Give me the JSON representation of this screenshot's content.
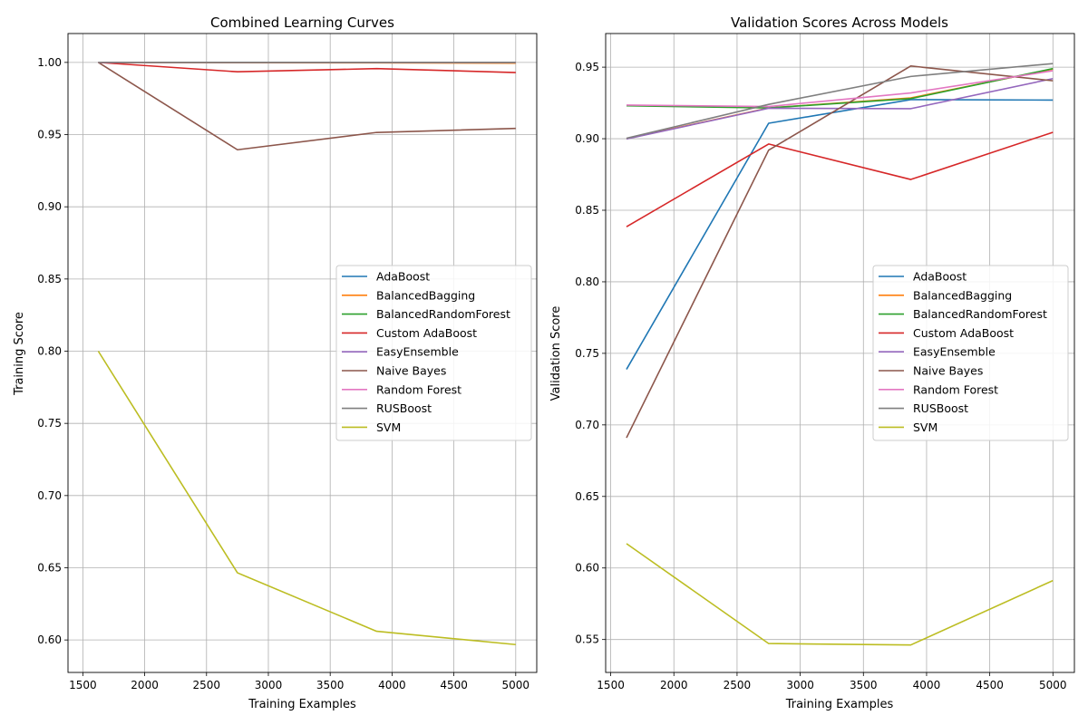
{
  "chart_data": [
    {
      "type": "line",
      "title": "Combined Learning Curves",
      "xlabel": "Training Examples",
      "ylabel": "Training Score",
      "xlim": [
        1380,
        5170
      ],
      "ylim": [
        0.5775,
        1.02
      ],
      "xticks": [
        1500,
        2000,
        2500,
        3000,
        3500,
        4000,
        4500,
        5000
      ],
      "yticks": [
        0.6,
        0.65,
        0.7,
        0.75,
        0.8,
        0.85,
        0.9,
        0.95,
        1.0
      ],
      "xtick_labels": [
        "1500",
        "2000",
        "2500",
        "3000",
        "3500",
        "4000",
        "4500",
        "5000"
      ],
      "ytick_labels": [
        "0.60",
        "0.65",
        "0.70",
        "0.75",
        "0.80",
        "0.85",
        "0.90",
        "0.95",
        "1.00"
      ],
      "grid": true,
      "legend_position": "center-right",
      "x": [
        1625,
        2750,
        3875,
        5000
      ],
      "series": [
        {
          "name": "AdaBoost",
          "color": "#1f77b4",
          "values": [
            1.0,
            1.0,
            1.0,
            1.0
          ]
        },
        {
          "name": "BalancedBagging",
          "color": "#ff7f0e",
          "values": [
            1.0,
            0.9998,
            0.9997,
            0.9995
          ]
        },
        {
          "name": "BalancedRandomForest",
          "color": "#2ca02c",
          "values": [
            1.0,
            1.0,
            1.0,
            1.0
          ]
        },
        {
          "name": "Custom AdaBoost",
          "color": "#d62728",
          "values": [
            1.0,
            0.9935,
            0.9957,
            0.993
          ]
        },
        {
          "name": "EasyEnsemble",
          "color": "#9467bd",
          "values": [
            1.0,
            1.0,
            1.0,
            1.0
          ]
        },
        {
          "name": "Naive Bayes",
          "color": "#8c564b",
          "values": [
            1.0,
            0.9395,
            0.9515,
            0.9543
          ]
        },
        {
          "name": "Random Forest",
          "color": "#e377c2",
          "values": [
            1.0,
            1.0,
            1.0,
            1.0
          ]
        },
        {
          "name": "RUSBoost",
          "color": "#7f7f7f",
          "values": [
            1.0,
            1.0,
            1.0,
            1.0
          ]
        },
        {
          "name": "SVM",
          "color": "#bcbd22",
          "values": [
            0.8,
            0.6465,
            0.606,
            0.5968
          ]
        }
      ]
    },
    {
      "type": "line",
      "title": "Validation Scores Across Models",
      "xlabel": "Training Examples",
      "ylabel": "Validation Score",
      "xlim": [
        1460,
        5170
      ],
      "ylim": [
        0.527,
        0.9735
      ],
      "xticks": [
        1500,
        2000,
        2500,
        3000,
        3500,
        4000,
        4500,
        5000
      ],
      "yticks": [
        0.55,
        0.6,
        0.65,
        0.7,
        0.75,
        0.8,
        0.85,
        0.9,
        0.95
      ],
      "xtick_labels": [
        "1500",
        "2000",
        "2500",
        "3000",
        "3500",
        "4000",
        "4500",
        "5000"
      ],
      "ytick_labels": [
        "0.55",
        "0.60",
        "0.65",
        "0.70",
        "0.75",
        "0.80",
        "0.85",
        "0.90",
        "0.95"
      ],
      "grid": true,
      "legend_position": "center-right",
      "x": [
        1625,
        2750,
        3875,
        5000
      ],
      "series": [
        {
          "name": "AdaBoost",
          "color": "#1f77b4",
          "values": [
            0.7388,
            0.9108,
            0.9273,
            0.927
          ]
        },
        {
          "name": "BalancedBagging",
          "color": "#ff7f0e",
          "values": [
            0.9,
            0.9215,
            0.9285,
            0.9487
          ]
        },
        {
          "name": "BalancedRandomForest",
          "color": "#2ca02c",
          "values": [
            0.923,
            0.9215,
            0.928,
            0.949
          ]
        },
        {
          "name": "Custom AdaBoost",
          "color": "#d62728",
          "values": [
            0.8385,
            0.8963,
            0.8715,
            0.9045
          ]
        },
        {
          "name": "EasyEnsemble",
          "color": "#9467bd",
          "values": [
            0.8998,
            0.9213,
            0.921,
            0.942
          ]
        },
        {
          "name": "Naive Bayes",
          "color": "#8c564b",
          "values": [
            0.691,
            0.892,
            0.9508,
            0.9405
          ]
        },
        {
          "name": "Random Forest",
          "color": "#e377c2",
          "values": [
            0.9235,
            0.9225,
            0.932,
            0.9475
          ]
        },
        {
          "name": "RUSBoost",
          "color": "#7f7f7f",
          "values": [
            0.9003,
            0.924,
            0.9435,
            0.9525
          ]
        },
        {
          "name": "SVM",
          "color": "#bcbd22",
          "values": [
            0.617,
            0.5472,
            0.5462,
            0.5912
          ]
        }
      ]
    }
  ]
}
